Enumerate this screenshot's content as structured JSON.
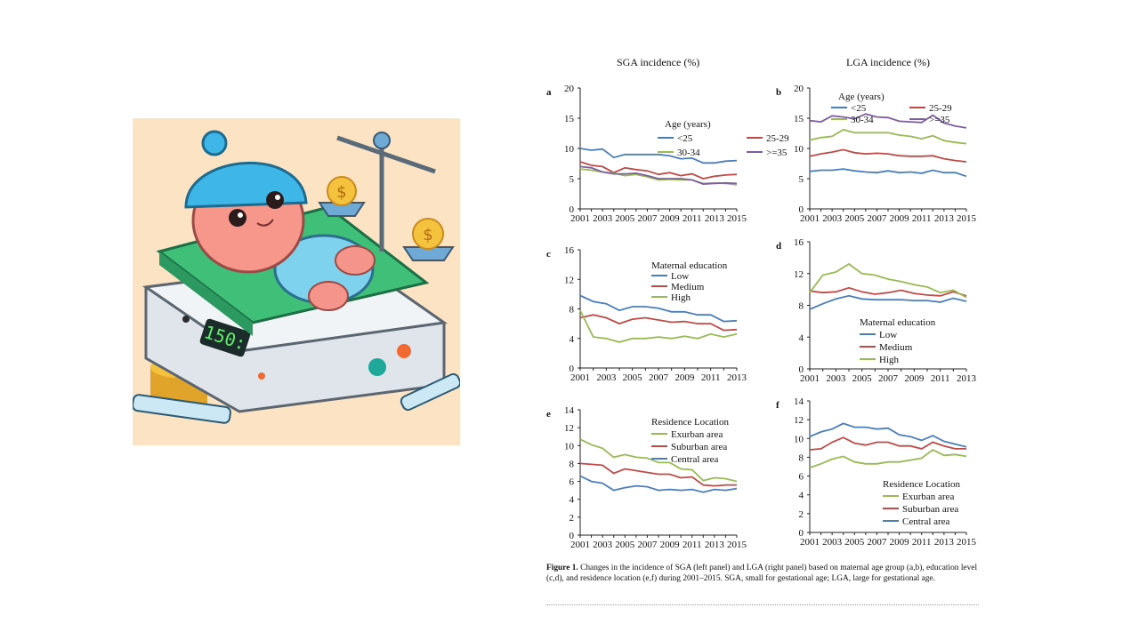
{
  "figure": {
    "left_title": "SGA incidence   (%)",
    "right_title": "LGA incidence   (%)",
    "caption": {
      "label": "Figure 1.",
      "text": "Changes in the incidence of SGA (left panel) and LGA (right panel) based on maternal age group (a,b), education level (c,d), and residence location (e,f) during 2001–2015. SGA, small for gestational age; LGA, large for gestational age."
    }
  },
  "colors": {
    "blue": "#4a7ebb",
    "red": "#be4b48",
    "green": "#98b954",
    "purple": "#7d5fa0"
  },
  "chart_data": [
    {
      "id": "a",
      "type": "line",
      "legend_title": "Age (years)",
      "x": [
        2001,
        2002,
        2003,
        2004,
        2005,
        2006,
        2007,
        2008,
        2009,
        2010,
        2011,
        2012,
        2013,
        2014,
        2015
      ],
      "xticks": [
        2001,
        2003,
        2005,
        2007,
        2009,
        2011,
        2013,
        2015
      ],
      "ylim": [
        0,
        20
      ],
      "yticks": [
        0,
        5,
        10,
        15,
        20
      ],
      "series": [
        {
          "name": "<25",
          "color": "blue",
          "values": [
            10.0,
            9.7,
            9.9,
            8.5,
            9.0,
            9.0,
            9.0,
            9.0,
            8.8,
            8.3,
            8.4,
            7.6,
            7.6,
            7.9,
            8.0
          ]
        },
        {
          "name": "25-29",
          "color": "red",
          "values": [
            7.8,
            7.2,
            7.0,
            6.0,
            6.8,
            6.5,
            6.3,
            5.7,
            6.0,
            5.5,
            5.8,
            5.0,
            5.4,
            5.6,
            5.7
          ]
        },
        {
          "name": "30-34",
          "color": "green",
          "values": [
            6.6,
            6.4,
            6.1,
            5.9,
            5.5,
            5.7,
            5.3,
            4.8,
            4.9,
            4.8,
            4.8,
            4.2,
            4.3,
            4.2,
            4.0
          ]
        },
        {
          "name": ">=35",
          "color": "purple",
          "values": [
            7.0,
            6.8,
            6.1,
            5.8,
            5.8,
            5.9,
            5.5,
            5.0,
            5.0,
            5.0,
            4.8,
            4.1,
            4.2,
            4.3,
            4.2
          ]
        }
      ]
    },
    {
      "id": "b",
      "type": "line",
      "legend_title": "Age (years)",
      "x": [
        2001,
        2002,
        2003,
        2004,
        2005,
        2006,
        2007,
        2008,
        2009,
        2010,
        2011,
        2012,
        2013,
        2014,
        2015
      ],
      "xticks": [
        2001,
        2003,
        2005,
        2007,
        2009,
        2011,
        2013,
        2015
      ],
      "ylim": [
        0,
        20
      ],
      "yticks": [
        0,
        5,
        10,
        15,
        20
      ],
      "series": [
        {
          "name": "<25",
          "color": "blue",
          "values": [
            6.2,
            6.4,
            6.4,
            6.6,
            6.3,
            6.1,
            6.0,
            6.3,
            6.0,
            6.1,
            5.9,
            6.4,
            6.0,
            6.0,
            5.4
          ]
        },
        {
          "name": "25-29",
          "color": "red",
          "values": [
            8.7,
            9.1,
            9.4,
            9.8,
            9.3,
            9.1,
            9.2,
            9.1,
            8.8,
            8.7,
            8.7,
            8.8,
            8.3,
            8.0,
            7.8
          ]
        },
        {
          "name": "30-34",
          "color": "green",
          "values": [
            11.4,
            11.8,
            12.0,
            13.1,
            12.6,
            12.6,
            12.6,
            12.6,
            12.2,
            12.0,
            11.6,
            12.1,
            11.3,
            11.0,
            10.8
          ]
        },
        {
          "name": ">=35",
          "color": "purple",
          "values": [
            14.6,
            14.4,
            15.4,
            15.2,
            14.9,
            15.7,
            15.2,
            15.1,
            14.5,
            14.4,
            14.3,
            15.5,
            14.2,
            13.7,
            13.4
          ]
        }
      ]
    },
    {
      "id": "c",
      "type": "line",
      "legend_title": "Maternal education",
      "x": [
        2001,
        2002,
        2003,
        2004,
        2005,
        2006,
        2007,
        2008,
        2009,
        2010,
        2011,
        2012,
        2013
      ],
      "xticks": [
        2001,
        2003,
        2005,
        2007,
        2009,
        2011,
        2013
      ],
      "ylim": [
        0,
        16
      ],
      "yticks": [
        0,
        4,
        8,
        12,
        16
      ],
      "series": [
        {
          "name": "Low",
          "color": "blue",
          "values": [
            9.8,
            9.0,
            8.7,
            7.8,
            8.3,
            8.3,
            8.1,
            7.6,
            7.6,
            7.2,
            7.2,
            6.3,
            6.4
          ]
        },
        {
          "name": "Medium",
          "color": "red",
          "values": [
            6.8,
            7.2,
            6.8,
            6.0,
            6.6,
            6.8,
            6.5,
            6.2,
            6.3,
            6.0,
            6.0,
            5.1,
            5.2
          ]
        },
        {
          "name": "High",
          "color": "green",
          "values": [
            7.8,
            4.2,
            4.0,
            3.5,
            4.0,
            4.0,
            4.2,
            4.0,
            4.3,
            4.0,
            4.6,
            4.2,
            4.6
          ]
        }
      ]
    },
    {
      "id": "d",
      "type": "line",
      "legend_title": "Maternal education",
      "x": [
        2001,
        2002,
        2003,
        2004,
        2005,
        2006,
        2007,
        2008,
        2009,
        2010,
        2011,
        2012,
        2013
      ],
      "xticks": [
        2001,
        2003,
        2005,
        2007,
        2009,
        2011,
        2013
      ],
      "ylim": [
        0,
        16
      ],
      "yticks": [
        0,
        4,
        8,
        12,
        16
      ],
      "series": [
        {
          "name": "Low",
          "color": "blue",
          "values": [
            7.5,
            8.2,
            8.8,
            9.2,
            8.8,
            8.7,
            8.7,
            8.7,
            8.6,
            8.6,
            8.4,
            8.9,
            8.5
          ]
        },
        {
          "name": "Medium",
          "color": "red",
          "values": [
            9.8,
            9.6,
            9.7,
            10.2,
            9.7,
            9.4,
            9.6,
            9.9,
            9.5,
            9.3,
            9.2,
            9.7,
            9.2
          ]
        },
        {
          "name": "High",
          "color": "green",
          "values": [
            9.6,
            11.8,
            12.2,
            13.2,
            12.0,
            11.8,
            11.3,
            11.0,
            10.6,
            10.3,
            9.6,
            9.9,
            9.0
          ]
        }
      ]
    },
    {
      "id": "e",
      "type": "line",
      "legend_title": "Residence Location",
      "x": [
        2001,
        2002,
        2003,
        2004,
        2005,
        2006,
        2007,
        2008,
        2009,
        2010,
        2011,
        2012,
        2013,
        2014,
        2015
      ],
      "xticks": [
        2001,
        2003,
        2005,
        2007,
        2009,
        2011,
        2013,
        2015
      ],
      "ylim": [
        0,
        14
      ],
      "yticks": [
        0,
        2,
        4,
        6,
        8,
        10,
        12,
        14
      ],
      "series": [
        {
          "name": "Exurban area",
          "color": "green",
          "values": [
            10.7,
            10.1,
            9.7,
            8.7,
            9.0,
            8.7,
            8.6,
            8.1,
            8.1,
            7.4,
            7.3,
            6.1,
            6.4,
            6.3,
            6.0
          ]
        },
        {
          "name": "Suburban area",
          "color": "red",
          "values": [
            8.0,
            7.9,
            7.8,
            6.9,
            7.4,
            7.2,
            7.0,
            6.8,
            6.8,
            6.4,
            6.5,
            5.6,
            5.5,
            5.6,
            5.6
          ]
        },
        {
          "name": "Central area",
          "color": "blue",
          "values": [
            6.6,
            6.0,
            5.8,
            5.0,
            5.3,
            5.5,
            5.4,
            5.0,
            5.1,
            5.0,
            5.1,
            4.8,
            5.1,
            5.0,
            5.2
          ]
        }
      ]
    },
    {
      "id": "f",
      "type": "line",
      "legend_title": "Residence Location",
      "x": [
        2001,
        2002,
        2003,
        2004,
        2005,
        2006,
        2007,
        2008,
        2009,
        2010,
        2011,
        2012,
        2013,
        2014,
        2015
      ],
      "xticks": [
        2001,
        2003,
        2005,
        2007,
        2009,
        2011,
        2013,
        2015
      ],
      "ylim": [
        0,
        14
      ],
      "yticks": [
        0,
        2,
        4,
        6,
        8,
        10,
        12,
        14
      ],
      "series": [
        {
          "name": "Exurban area",
          "color": "green",
          "values": [
            6.9,
            7.3,
            7.8,
            8.1,
            7.5,
            7.3,
            7.3,
            7.5,
            7.5,
            7.7,
            7.9,
            8.8,
            8.2,
            8.3,
            8.1
          ]
        },
        {
          "name": "Suburban area",
          "color": "red",
          "values": [
            8.8,
            8.9,
            9.6,
            10.1,
            9.5,
            9.3,
            9.6,
            9.6,
            9.2,
            9.2,
            8.9,
            9.6,
            9.2,
            8.9,
            8.9
          ]
        },
        {
          "name": "Central area",
          "color": "blue",
          "values": [
            10.2,
            10.7,
            11.0,
            11.6,
            11.2,
            11.2,
            11.0,
            11.1,
            10.4,
            10.2,
            9.8,
            10.3,
            9.7,
            9.4,
            9.1
          ]
        }
      ]
    }
  ]
}
